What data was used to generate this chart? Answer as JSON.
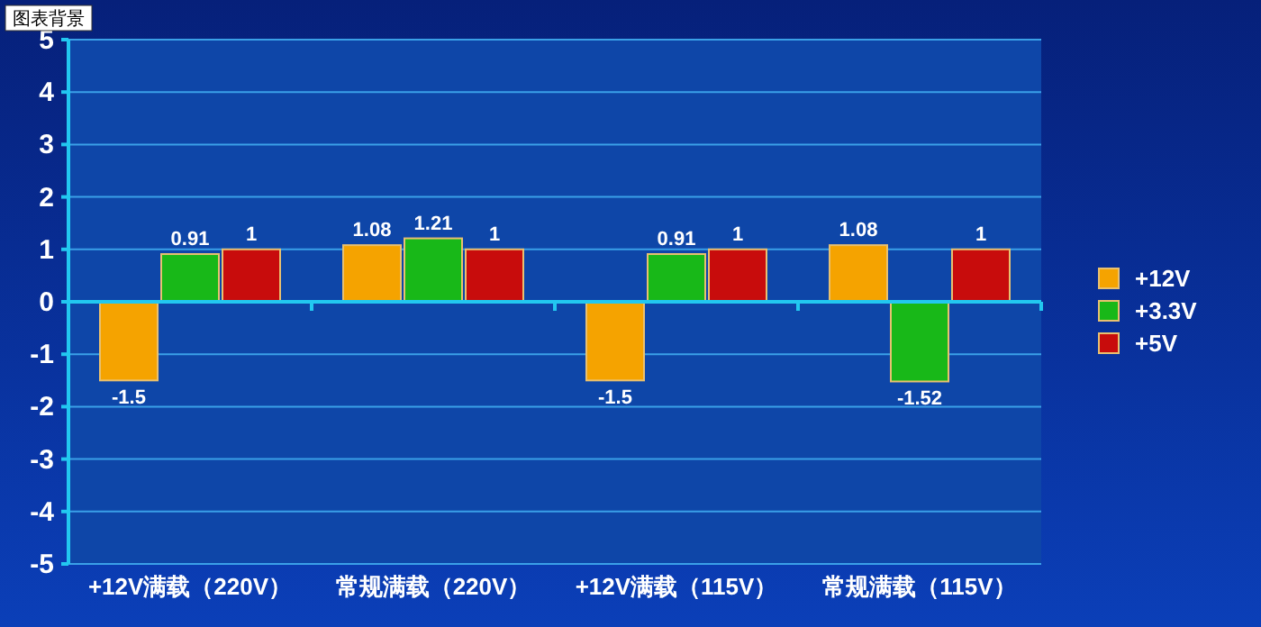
{
  "chart_data": {
    "type": "bar",
    "categories": [
      "+12V满载（220V）",
      "常规满载（220V）",
      "+12V满载（115V）",
      "常规满载（115V）"
    ],
    "series": [
      {
        "name": "+12V",
        "color": "#f5a300",
        "values": [
          -1.5,
          1.08,
          -1.5,
          1.08
        ]
      },
      {
        "name": "+3.3V",
        "color": "#18b818",
        "values": [
          0.91,
          1.21,
          0.91,
          -1.52
        ]
      },
      {
        "name": "+5V",
        "color": "#c80c0c",
        "values": [
          1,
          1,
          1,
          1
        ]
      }
    ],
    "ylim": [
      -5,
      5
    ],
    "yticks": [
      -5,
      -4,
      -3,
      -2,
      -1,
      0,
      1,
      2,
      3,
      4,
      5
    ],
    "grid": "y",
    "legend": "right",
    "data_labels": true,
    "ref_lines": [
      {
        "axis": "y",
        "value": 0,
        "color": "#22c8f0"
      }
    ],
    "annotations": [
      "图表背景"
    ]
  }
}
